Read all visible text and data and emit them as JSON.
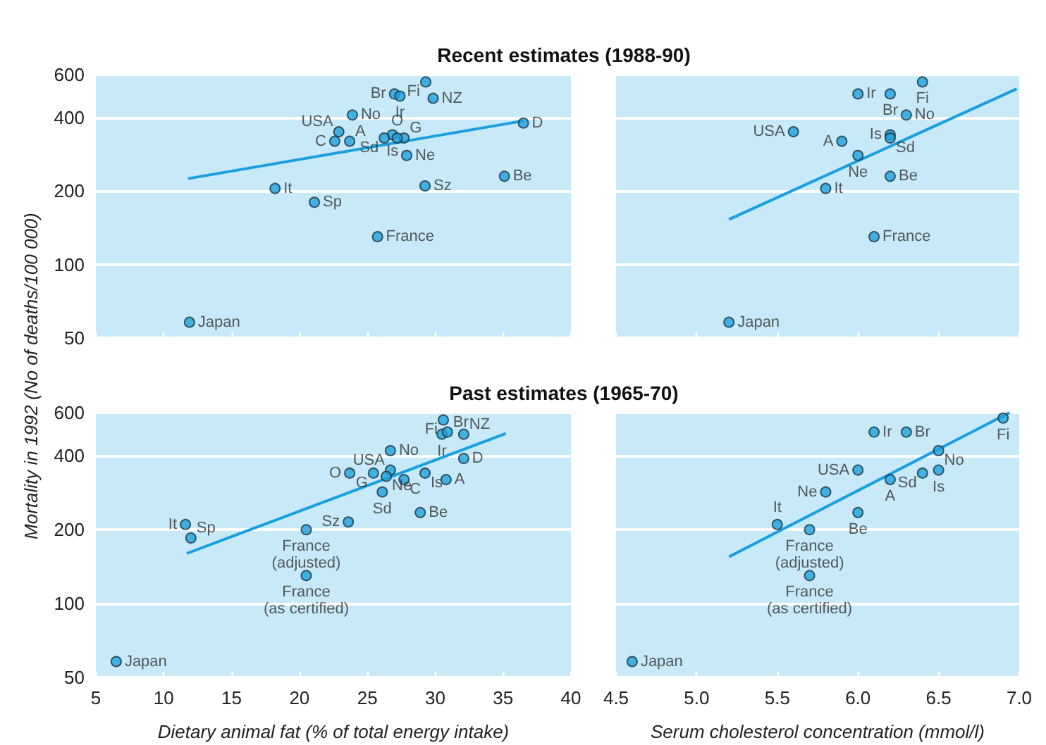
{
  "chart_data": [
    {
      "type": "scatter",
      "title": "Recent estimates (1988-90)",
      "ylabel": "Mortality in 1992 (No of deaths/100 000)",
      "log": "y",
      "grid": "y",
      "tick_labels": "y",
      "xlim": [
        5,
        40
      ],
      "xticks": [
        5,
        10,
        15,
        20,
        25,
        30,
        35,
        40
      ],
      "ylim": [
        50,
        600
      ],
      "yticks": [
        50,
        100,
        200,
        400,
        600
      ],
      "series": [
        {
          "color": "#1ea0dc",
          "marker": "circle",
          "x": [
            29.3,
            27.0,
            27.4,
            29.85,
            23.9,
            36.5,
            22.9,
            26.85,
            27.7,
            26.25,
            27.2,
            22.6,
            23.7,
            27.9,
            35.1,
            29.25,
            18.2,
            21.1,
            25.75,
            11.9
          ],
          "values": [
            560,
            500,
            490,
            480,
            410,
            380,
            350,
            340,
            330,
            330,
            330,
            320,
            320,
            280,
            230,
            210,
            205,
            180,
            130,
            58
          ],
          "value_labels": [
            "Fi",
            "Br",
            "Ir",
            "NZ",
            "No",
            "D",
            "USA",
            "Is",
            "G",
            "Sd",
            "O",
            "C",
            "A",
            "Ne",
            "Be",
            "Sz",
            "It",
            "Sp",
            "France",
            "Japan"
          ]
        },
        {
          "type": "line",
          "marker": "none",
          "color": "#1a9fe0",
          "x": [
            11.8,
            36.5
          ],
          "values": [
            225,
            388
          ]
        }
      ]
    },
    {
      "type": "scatter",
      "log": "y",
      "grid": "y",
      "tick_labels": false,
      "xlim": [
        4.5,
        7.0
      ],
      "xticks": [
        4.5,
        5,
        5.5,
        6,
        6.5,
        7
      ],
      "ylim": [
        50,
        600
      ],
      "yticks": [
        50,
        100,
        200,
        400,
        600
      ],
      "series": [
        {
          "color": "#1ea0dc",
          "marker": "circle",
          "x": [
            6.4,
            6.0,
            6.2,
            6.3,
            5.6,
            6.2,
            6.2,
            5.9,
            6.0,
            6.2,
            5.8,
            6.1,
            5.2
          ],
          "values": [
            560,
            500,
            500,
            410,
            350,
            340,
            330,
            320,
            280,
            230,
            205,
            130,
            58
          ],
          "value_labels": [
            "Fi",
            "Ir",
            "Br",
            "No",
            "USA",
            "Is",
            "Sd",
            "A",
            "Ne",
            "Be",
            "It",
            "France",
            "Japan"
          ]
        },
        {
          "type": "line",
          "marker": "none",
          "color": "#1a9fe0",
          "x": [
            5.2,
            6.985
          ],
          "values": [
            153,
            525
          ]
        }
      ]
    },
    {
      "type": "scatter",
      "title": "Past estimates (1965-70)",
      "xlabel": "Dietary animal fat (% of total energy intake)",
      "log": "y",
      "grid": "y",
      "xlim": [
        5,
        40
      ],
      "xticks": [
        5,
        10,
        15,
        20,
        25,
        30,
        35,
        40
      ],
      "ylim": [
        50,
        600
      ],
      "yticks": [
        50,
        100,
        200,
        400,
        600
      ],
      "series": [
        {
          "color": "#1ea0dc",
          "marker": "circle",
          "x": [
            30.6,
            30.5,
            30.9,
            32.1,
            26.7,
            32.1,
            26.7,
            23.7,
            25.45,
            26.4,
            27.7,
            29.25,
            30.8,
            26.1,
            28.9,
            23.6,
            11.6,
            12.0,
            20.5,
            20.5,
            6.5
          ],
          "values": [
            560,
            490,
            500,
            490,
            420,
            390,
            350,
            340,
            340,
            330,
            320,
            340,
            320,
            285,
            235,
            215,
            210,
            185,
            200,
            130,
            58
          ],
          "value_labels": [
            "Fi",
            "Ir",
            "Br",
            "NZ",
            "No",
            "D",
            "USA",
            "O",
            "G",
            "Ne",
            "C",
            "Is",
            "A",
            "Sd",
            "Be",
            "Sz",
            "It",
            "Sp",
            "France (adjusted)",
            "France (as certified)",
            "Japan"
          ]
        },
        {
          "type": "line",
          "marker": "none",
          "color": "#1a9fe0",
          "x": [
            11.7,
            35.2
          ],
          "values": [
            160,
            493
          ]
        }
      ]
    },
    {
      "type": "scatter",
      "xlabel": "Serum cholesterol concentration (mmol/l)",
      "log": "y",
      "grid": "y",
      "tick_labels": "x",
      "xlim": [
        4.5,
        7.0
      ],
      "xticks": [
        {
          "value": 4.5,
          "label": "4.5"
        },
        {
          "value": 5,
          "label": "5.0"
        },
        {
          "value": 5.5,
          "label": "5.5"
        },
        {
          "value": 6,
          "label": "6.0"
        },
        {
          "value": 6.5,
          "label": "6.5"
        },
        {
          "value": 7,
          "label": "7.0"
        }
      ],
      "ylim": [
        50,
        600
      ],
      "yticks": [
        50,
        100,
        200,
        400,
        600
      ],
      "series": [
        {
          "color": "#1ea0dc",
          "marker": "circle",
          "x": [
            6.9,
            6.1,
            6.3,
            6.5,
            6.0,
            6.5,
            6.4,
            6.2,
            5.8,
            6.0,
            5.5,
            5.7,
            5.7,
            4.6
          ],
          "values": [
            570,
            500,
            500,
            420,
            350,
            350,
            340,
            320,
            285,
            235,
            210,
            200,
            130,
            58
          ],
          "value_labels": [
            "Fi",
            "Ir",
            "Br",
            "No",
            "USA",
            "Is",
            "Sd",
            "A",
            "Ne",
            "Be",
            "It",
            "France (adjusted)",
            "France (as certified)",
            "Japan"
          ]
        },
        {
          "type": "line",
          "marker": "none",
          "color": "#1a9fe0",
          "x": [
            5.2,
            6.94
          ],
          "values": [
            155,
            600
          ]
        }
      ]
    }
  ]
}
